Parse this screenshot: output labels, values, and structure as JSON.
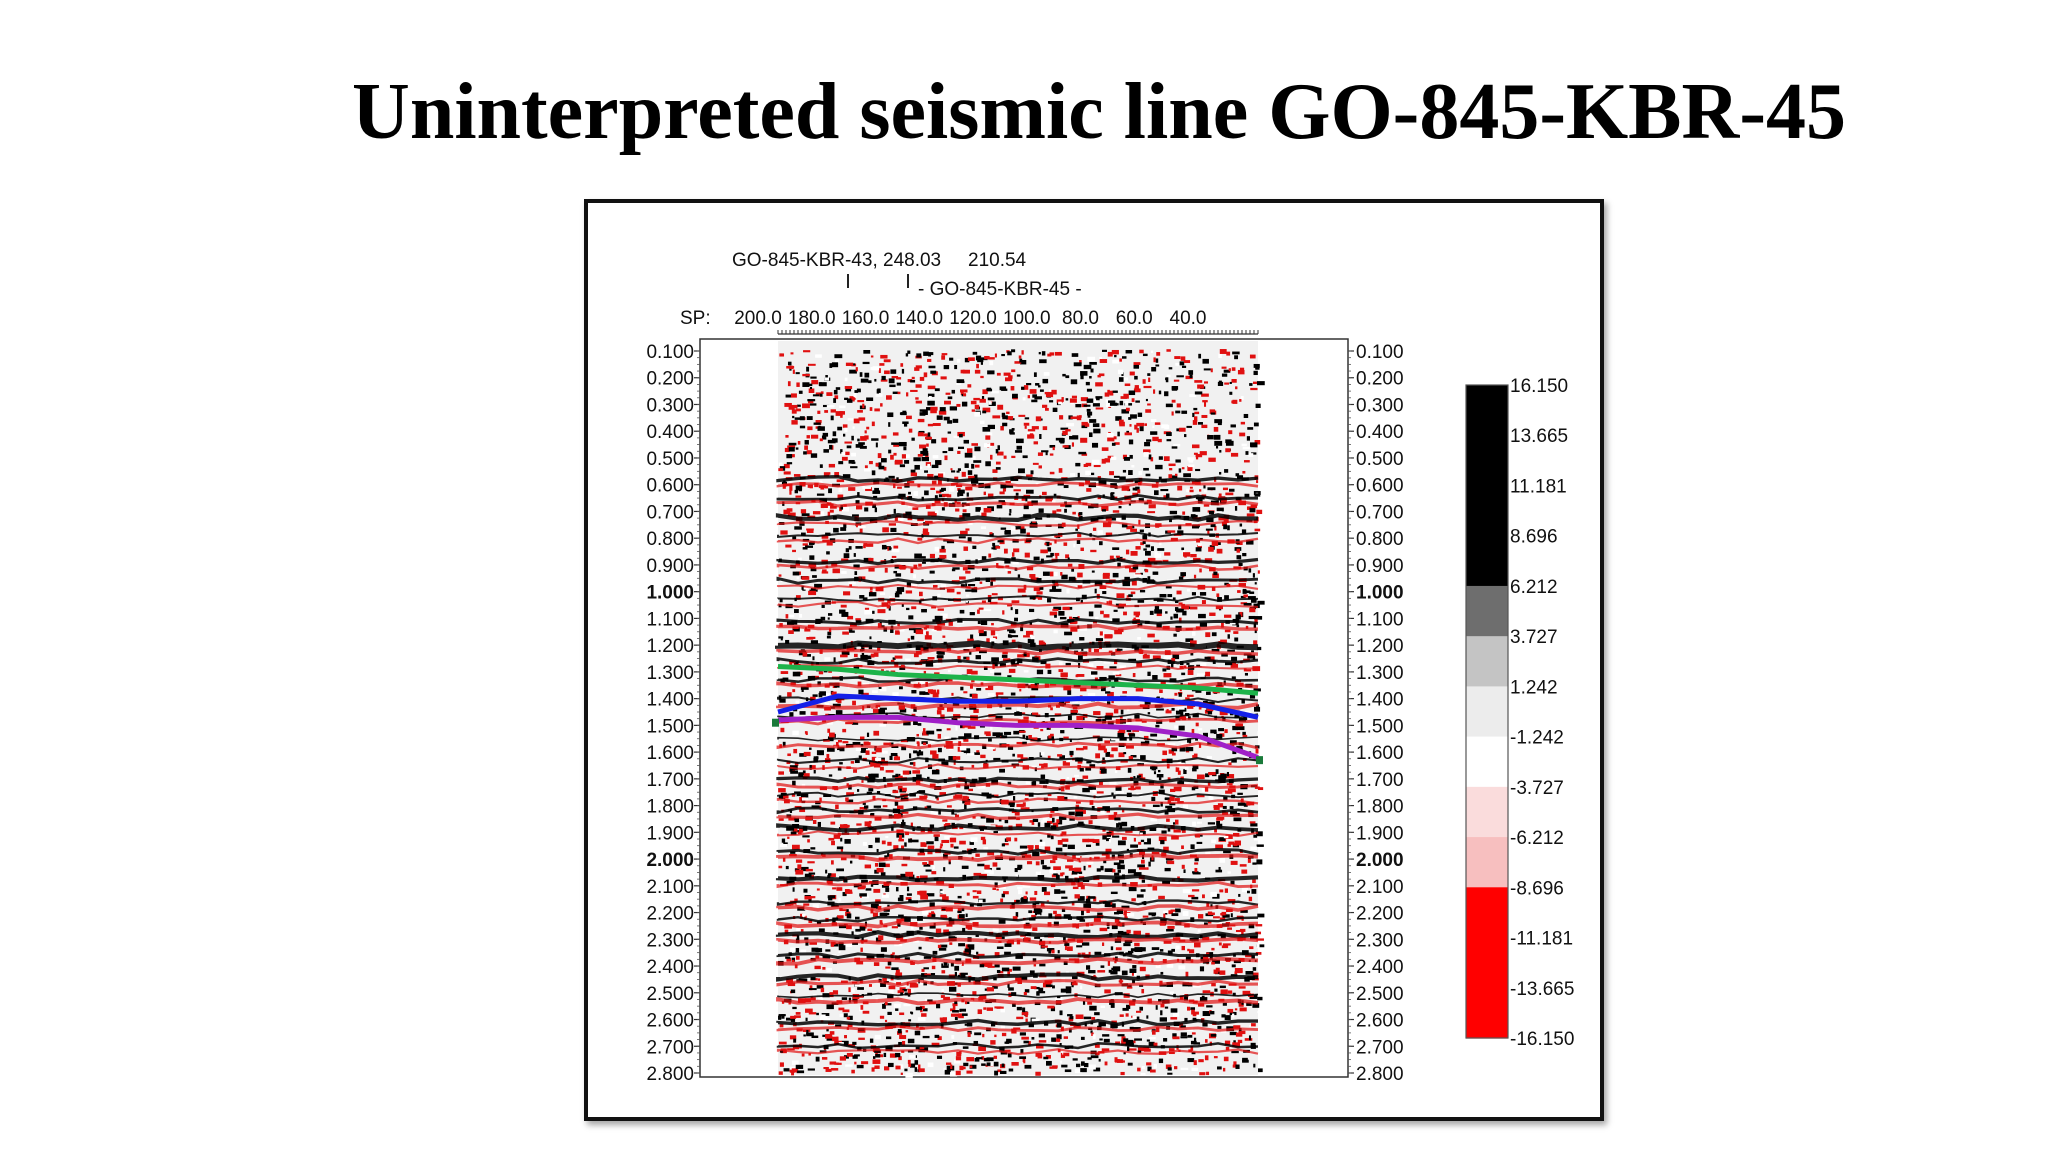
{
  "title": "Uninterpreted seismic line GO-845-KBR-45",
  "header": {
    "tie_line_label": "GO-845-KBR-43, 248.03",
    "tie_value": "210.54",
    "line_label": "- GO-845-KBR-45 -",
    "sp_label": "SP:",
    "shot_points": [
      "200.0",
      "180.0",
      "160.0",
      "140.0",
      "120.0",
      "100.0",
      "80.0",
      "60.0",
      "40.0"
    ]
  },
  "time_axis": {
    "ticks": [
      "0.100",
      "0.200",
      "0.300",
      "0.400",
      "0.500",
      "0.600",
      "0.700",
      "0.800",
      "0.900",
      "1.000",
      "1.100",
      "1.200",
      "1.300",
      "1.400",
      "1.500",
      "1.600",
      "1.700",
      "1.800",
      "1.900",
      "2.000",
      "2.100",
      "2.200",
      "2.300",
      "2.400",
      "2.500",
      "2.600",
      "2.700",
      "2.800"
    ],
    "bold_ticks": [
      "1.000",
      "2.000"
    ]
  },
  "colorbar": {
    "labels": [
      "16.150",
      "13.665",
      "11.181",
      "8.696",
      "6.212",
      "3.727",
      "1.242",
      "-1.242",
      "-3.727",
      "-6.212",
      "-8.696",
      "-11.181",
      "-13.665",
      "-16.150"
    ],
    "segments": [
      "#000000",
      "#000000",
      "#000000",
      "#000000",
      "#6e6e6e",
      "#c4c4c4",
      "#ececec",
      "#ffffff",
      "#fadcdc",
      "#f7bfbf",
      "#ff0000",
      "#ff0000",
      "#ff0000"
    ]
  },
  "horizons": [
    {
      "color": "#1db34a",
      "times": [
        1.28,
        1.29,
        1.31,
        1.32,
        1.33,
        1.34,
        1.35,
        1.36,
        1.38
      ]
    },
    {
      "color": "#1420e8",
      "times": [
        1.45,
        1.39,
        1.4,
        1.41,
        1.41,
        1.4,
        1.4,
        1.42,
        1.47
      ]
    },
    {
      "color": "#a020c8",
      "times": [
        1.48,
        1.47,
        1.47,
        1.49,
        1.5,
        1.5,
        1.51,
        1.54,
        1.62
      ]
    }
  ]
}
